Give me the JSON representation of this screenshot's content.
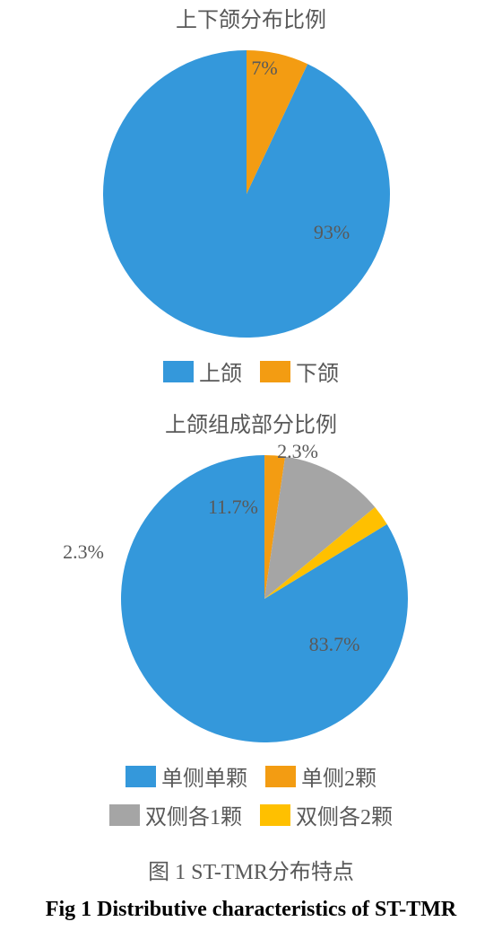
{
  "chart1": {
    "type": "pie",
    "title": "上下颌分布比例",
    "radius": 160,
    "slices": [
      {
        "label": "上颌",
        "value": 93,
        "display": "93%",
        "color": "#3498db"
      },
      {
        "label": "下颌",
        "value": 7,
        "display": "7%",
        "color": "#f39c12"
      }
    ]
  },
  "chart2": {
    "type": "pie",
    "title": "上颌组成部分比例",
    "radius": 160,
    "slices": [
      {
        "label": "单侧单颗",
        "value": 83.7,
        "display": "83.7%",
        "color": "#3498db"
      },
      {
        "label": "单侧2颗",
        "value": 2.3,
        "display": "2.3%",
        "color": "#f39c12"
      },
      {
        "label": "双侧各1颗",
        "value": 11.7,
        "display": "11.7%",
        "color": "#a5a5a5"
      },
      {
        "label": "双侧各2颗",
        "value": 2.3,
        "display": "2.3%",
        "color": "#ffc000"
      }
    ]
  },
  "caption_cn": "图 1  ST-TMR分布特点",
  "caption_en": "Fig 1  Distributive characteristics of ST-TMR",
  "label_fontsize": 22,
  "title_fontsize": 24,
  "background_color": "#ffffff",
  "text_color": "#595959"
}
